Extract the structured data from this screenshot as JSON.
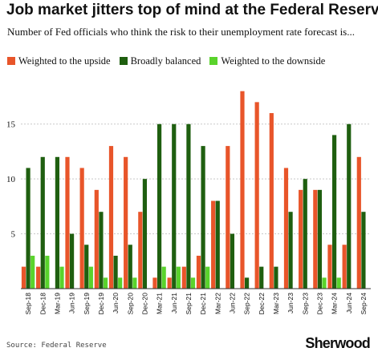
{
  "header": {
    "title": "Job market jitters top of mind at the Federal Reserve",
    "subtitle": "Number of Fed officials who think the risk to their unemployment rate forecast is..."
  },
  "colors": {
    "upside": "#e8552a",
    "balanced": "#1f5f10",
    "downside": "#5ad32c",
    "grid": "#c8c8c8",
    "text": "#111111"
  },
  "footer": {
    "source": "Source: Federal Reserve",
    "logo": "Sherwood"
  },
  "chart_data": {
    "type": "bar",
    "title": "Job market jitters top of mind at the Federal Reserve",
    "subtitle": "Number of Fed officials who think the risk to their unemployment rate forecast is...",
    "xlabel": "",
    "ylabel": "",
    "ylim": [
      0,
      19
    ],
    "yticks": [
      5,
      10,
      15
    ],
    "grid": true,
    "legend_position": "top-left",
    "categories": [
      "Sep-18",
      "Dec-18",
      "Mar-19",
      "Jun-19",
      "Sep-19",
      "Dec-19",
      "Jun-20",
      "Sep-20",
      "Dec-20",
      "Mar-21",
      "Jun-21",
      "Sep-21",
      "Dec-21",
      "Mar-22",
      "Jun-22",
      "Sep-22",
      "Dec-22",
      "Mar-23",
      "Jun-23",
      "Sep-23",
      "Dec-23",
      "Mar-24",
      "Jun-24",
      "Sep-24"
    ],
    "series": [
      {
        "name": "Weighted to the upside",
        "key": "upside",
        "values": [
          2,
          2,
          0,
          12,
          11,
          9,
          13,
          12,
          7,
          1,
          1,
          2,
          3,
          8,
          13,
          18,
          17,
          16,
          11,
          9,
          9,
          4,
          4,
          12
        ]
      },
      {
        "name": "Broadly balanced",
        "key": "balanced",
        "values": [
          11,
          12,
          12,
          5,
          4,
          7,
          3,
          4,
          10,
          15,
          15,
          15,
          13,
          8,
          5,
          1,
          2,
          2,
          7,
          10,
          9,
          14,
          15,
          7
        ]
      },
      {
        "name": "Weighted to the downside",
        "key": "downside",
        "values": [
          3,
          3,
          2,
          0,
          2,
          1,
          1,
          1,
          0,
          2,
          2,
          1,
          2,
          0,
          0,
          0,
          0,
          0,
          0,
          0,
          1,
          1,
          0,
          0
        ]
      }
    ]
  }
}
